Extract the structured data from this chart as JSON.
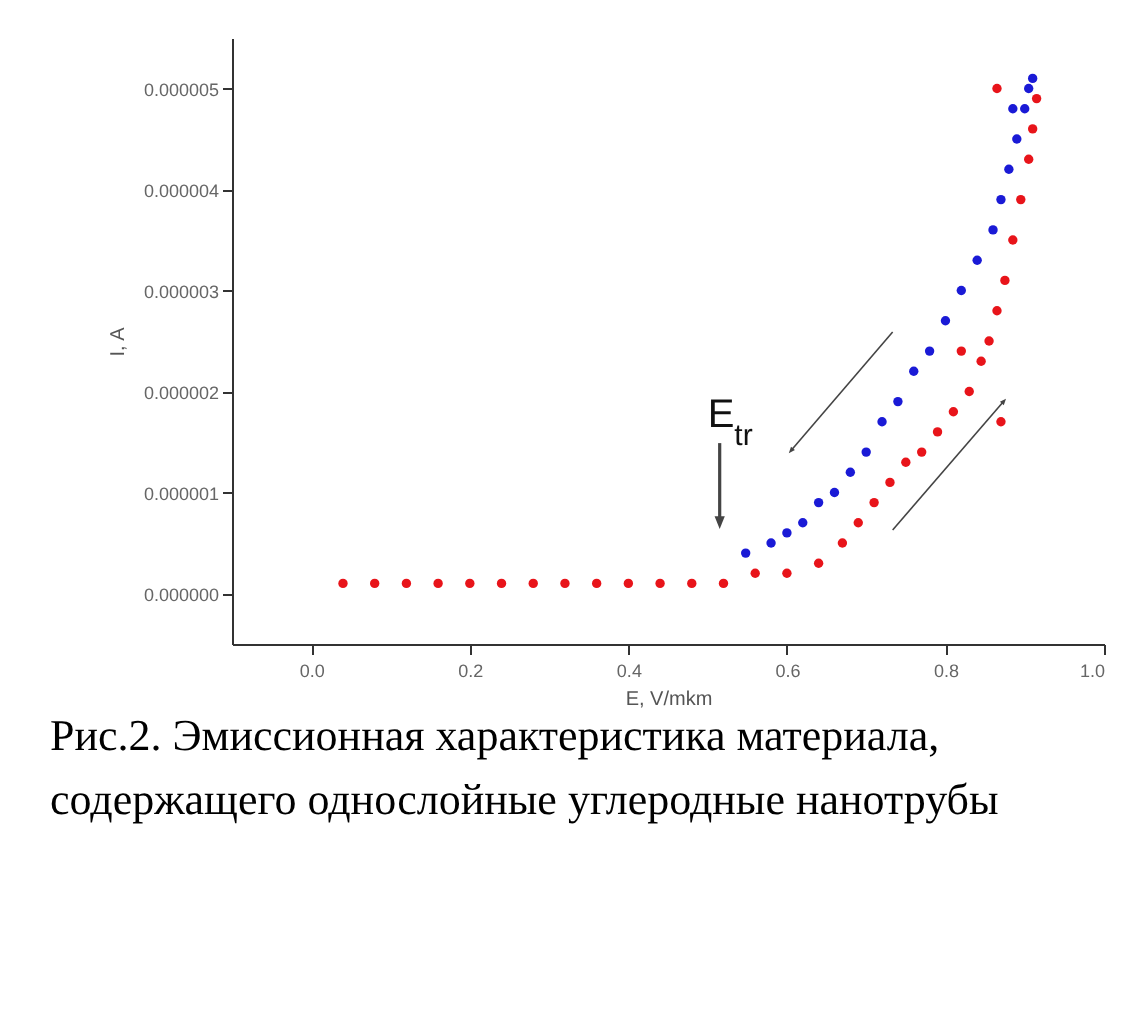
{
  "chart_data": {
    "type": "scatter",
    "xlabel": "E, V/mkm",
    "ylabel": "I, A",
    "xlim": [
      -0.1,
      1.0
    ],
    "ylim": [
      -5e-07,
      5.5e-06
    ],
    "xticks": [
      {
        "value": 0,
        "label": "0.0"
      },
      {
        "value": 0.2,
        "label": "0.2"
      },
      {
        "value": 0.4,
        "label": "0.4"
      },
      {
        "value": 0.6,
        "label": "0.6"
      },
      {
        "value": 0.8,
        "label": "0.8"
      },
      {
        "value": 1,
        "label": "1.0"
      }
    ],
    "yticks": [
      {
        "value": 0,
        "label": "0.000000"
      },
      {
        "value": 1e-06,
        "label": "0.000001"
      },
      {
        "value": 2e-06,
        "label": "0.000002"
      },
      {
        "value": 3e-06,
        "label": "0.000003"
      },
      {
        "value": 4e-06,
        "label": "0.000004"
      },
      {
        "value": 5e-06,
        "label": "0.000005"
      }
    ],
    "marker": "circle",
    "series": [
      {
        "color": "#e8141a",
        "x": [
          0.04,
          0.08,
          0.12,
          0.16,
          0.2,
          0.24,
          0.28,
          0.32,
          0.36,
          0.4,
          0.44,
          0.48,
          0.52,
          0.56,
          0.6,
          0.64,
          0.67,
          0.69,
          0.71,
          0.73,
          0.75,
          0.77,
          0.79,
          0.81,
          0.83,
          0.845,
          0.855,
          0.865,
          0.875,
          0.885,
          0.895,
          0.905,
          0.91,
          0.915,
          0.865,
          0.87,
          0.82
        ],
        "values": [
          1e-07,
          1e-07,
          1e-07,
          1e-07,
          1e-07,
          1e-07,
          1e-07,
          1e-07,
          1e-07,
          1e-07,
          1e-07,
          1e-07,
          1e-07,
          2e-07,
          2e-07,
          3e-07,
          5e-07,
          7e-07,
          9e-07,
          1.1e-06,
          1.3e-06,
          1.4e-06,
          1.6e-06,
          1.8e-06,
          2e-06,
          2.3e-06,
          2.5e-06,
          2.8e-06,
          3.1e-06,
          3.5e-06,
          3.9e-06,
          4.3e-06,
          4.6e-06,
          4.9e-06,
          5e-06,
          1.7e-06,
          2.4e-06
        ]
      },
      {
        "color": "#1a1ad6",
        "x": [
          0.548,
          0.58,
          0.6,
          0.62,
          0.64,
          0.66,
          0.68,
          0.7,
          0.72,
          0.74,
          0.76,
          0.78,
          0.8,
          0.82,
          0.84,
          0.86,
          0.87,
          0.88,
          0.89,
          0.9,
          0.905,
          0.91,
          0.885
        ],
        "values": [
          4e-07,
          5e-07,
          6e-07,
          7e-07,
          9e-07,
          1e-06,
          1.2e-06,
          1.4e-06,
          1.7e-06,
          1.9e-06,
          2.2e-06,
          2.4e-06,
          2.7e-06,
          3e-06,
          3.3e-06,
          3.6e-06,
          3.9e-06,
          4.2e-06,
          4.5e-06,
          4.8e-06,
          5e-06,
          5.1e-06,
          4.8e-06
        ]
      }
    ],
    "annotations": [
      {
        "text": "E$_{tr}$",
        "x": 0.548,
        "y": 4e-07
      },
      "Рис.2. Эмиссионная характеристика материала, содержащего однослойные углеродные нанотрубы"
    ]
  }
}
